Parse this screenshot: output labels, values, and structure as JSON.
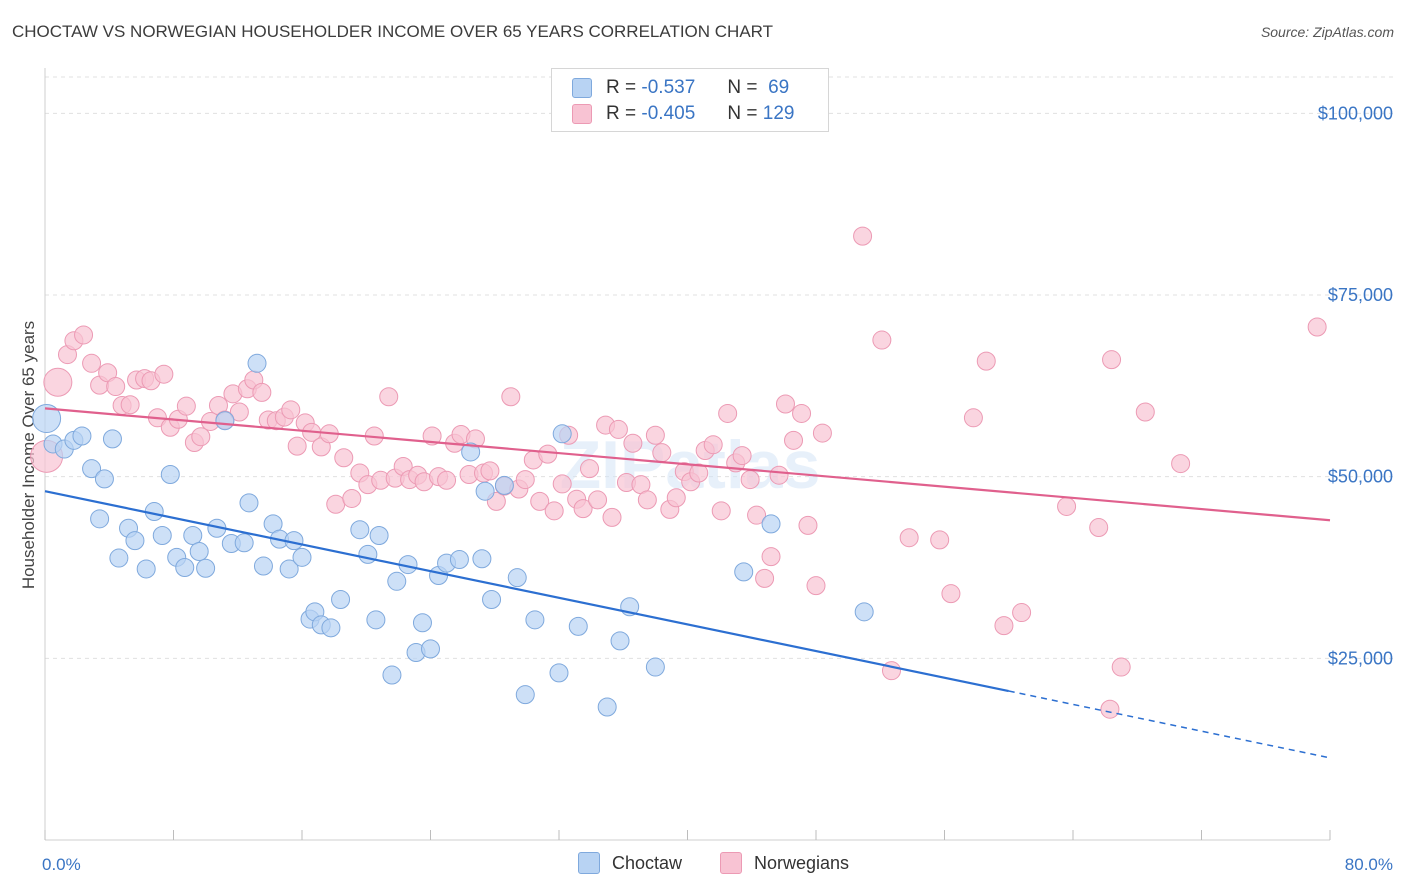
{
  "title": "CHOCTAW VS NORWEGIAN HOUSEHOLDER INCOME OVER 65 YEARS CORRELATION CHART",
  "source": "Source: ZipAtlas.com",
  "watermark": "ZIPatlas",
  "legend": {
    "r_label": "R =",
    "n_label": "N =",
    "rows": [
      {
        "name": "Choctaw",
        "r": "-0.537",
        "n": "69"
      },
      {
        "name": "Norwegians",
        "r": "-0.405",
        "n": "129"
      }
    ]
  },
  "colors": {
    "choctaw_fill": "#b8d3f3",
    "choctaw_stroke": "#7fa9dd",
    "choctaw_line": "#2c6fd1",
    "norwegian_fill": "#f8c3d3",
    "norwegian_stroke": "#ec9ab4",
    "norwegian_line": "#e0608d",
    "axis_text": "#3a75c4",
    "grid": "#e0e0e0"
  },
  "chart_data": {
    "type": "scatter",
    "title": "CHOCTAW VS NORWEGIAN HOUSEHOLDER INCOME OVER 65 YEARS CORRELATION CHART",
    "xlabel": "",
    "ylabel": "Householder Income Over 65 years",
    "xlim": [
      0,
      80
    ],
    "ylim": [
      0,
      105000
    ],
    "x_tick_labels": [
      "0.0%",
      "80.0%"
    ],
    "y_ticks": [
      25000,
      50000,
      75000,
      100000
    ],
    "y_tick_labels": [
      "$25,000",
      "$50,000",
      "$75,000",
      "$100,000"
    ],
    "series": [
      {
        "name": "Choctaw",
        "trend": {
          "x0": 0,
          "y0": 48000,
          "x1": 60,
          "y1": 20500,
          "dash_x1": 80,
          "dash_y1": 11300
        },
        "points": [
          {
            "x": 0.1,
            "y": 58000,
            "s": 14
          },
          {
            "x": 0.5,
            "y": 54500
          },
          {
            "x": 1.2,
            "y": 53800
          },
          {
            "x": 1.8,
            "y": 55000
          },
          {
            "x": 2.3,
            "y": 55600
          },
          {
            "x": 2.9,
            "y": 51100
          },
          {
            "x": 3.4,
            "y": 44200
          },
          {
            "x": 3.7,
            "y": 49700
          },
          {
            "x": 4.2,
            "y": 55200
          },
          {
            "x": 4.6,
            "y": 38800
          },
          {
            "x": 5.2,
            "y": 42900
          },
          {
            "x": 5.6,
            "y": 41200
          },
          {
            "x": 6.3,
            "y": 37300
          },
          {
            "x": 6.8,
            "y": 45200
          },
          {
            "x": 7.3,
            "y": 41900
          },
          {
            "x": 7.8,
            "y": 50300
          },
          {
            "x": 8.2,
            "y": 38900
          },
          {
            "x": 8.7,
            "y": 37500
          },
          {
            "x": 9.2,
            "y": 41900
          },
          {
            "x": 9.6,
            "y": 39700
          },
          {
            "x": 10.0,
            "y": 37400
          },
          {
            "x": 10.7,
            "y": 42900
          },
          {
            "x": 11.2,
            "y": 57700
          },
          {
            "x": 11.6,
            "y": 40800
          },
          {
            "x": 12.4,
            "y": 40900
          },
          {
            "x": 12.7,
            "y": 46400
          },
          {
            "x": 13.2,
            "y": 65600
          },
          {
            "x": 13.6,
            "y": 37700
          },
          {
            "x": 14.2,
            "y": 43500
          },
          {
            "x": 14.6,
            "y": 41400
          },
          {
            "x": 15.2,
            "y": 37300
          },
          {
            "x": 15.5,
            "y": 41200
          },
          {
            "x": 16.0,
            "y": 38900
          },
          {
            "x": 16.5,
            "y": 30400
          },
          {
            "x": 16.8,
            "y": 31400
          },
          {
            "x": 17.2,
            "y": 29600
          },
          {
            "x": 17.8,
            "y": 29200
          },
          {
            "x": 18.4,
            "y": 33100
          },
          {
            "x": 19.6,
            "y": 42700
          },
          {
            "x": 20.1,
            "y": 39300
          },
          {
            "x": 20.6,
            "y": 30300
          },
          {
            "x": 20.8,
            "y": 41900
          },
          {
            "x": 21.6,
            "y": 22700
          },
          {
            "x": 21.9,
            "y": 35600
          },
          {
            "x": 22.6,
            "y": 37900
          },
          {
            "x": 23.1,
            "y": 25800
          },
          {
            "x": 23.5,
            "y": 29900
          },
          {
            "x": 24.0,
            "y": 26300
          },
          {
            "x": 24.5,
            "y": 36400
          },
          {
            "x": 25.0,
            "y": 38100
          },
          {
            "x": 25.8,
            "y": 38600
          },
          {
            "x": 26.5,
            "y": 53400
          },
          {
            "x": 27.2,
            "y": 38700
          },
          {
            "x": 27.4,
            "y": 48000
          },
          {
            "x": 27.8,
            "y": 33100
          },
          {
            "x": 28.6,
            "y": 48800
          },
          {
            "x": 29.4,
            "y": 36100
          },
          {
            "x": 29.9,
            "y": 20000
          },
          {
            "x": 30.5,
            "y": 30300
          },
          {
            "x": 32.0,
            "y": 23000
          },
          {
            "x": 32.2,
            "y": 55900
          },
          {
            "x": 33.2,
            "y": 29400
          },
          {
            "x": 35.0,
            "y": 18300
          },
          {
            "x": 35.8,
            "y": 27400
          },
          {
            "x": 36.4,
            "y": 32100
          },
          {
            "x": 38.0,
            "y": 23800
          },
          {
            "x": 43.5,
            "y": 36900
          },
          {
            "x": 45.2,
            "y": 43500
          },
          {
            "x": 51.0,
            "y": 31400
          }
        ]
      },
      {
        "name": "Norwegians",
        "trend": {
          "x0": 0,
          "y0": 59400,
          "x1": 80,
          "y1": 44000
        },
        "points": [
          {
            "x": 0.1,
            "y": 52800,
            "s": 16
          },
          {
            "x": 0.8,
            "y": 63000,
            "s": 14
          },
          {
            "x": 1.4,
            "y": 66800
          },
          {
            "x": 1.8,
            "y": 68700
          },
          {
            "x": 2.4,
            "y": 69500
          },
          {
            "x": 2.9,
            "y": 65600
          },
          {
            "x": 3.4,
            "y": 62600
          },
          {
            "x": 3.9,
            "y": 64300
          },
          {
            "x": 4.4,
            "y": 62400
          },
          {
            "x": 4.8,
            "y": 59800
          },
          {
            "x": 5.3,
            "y": 59900
          },
          {
            "x": 5.7,
            "y": 63300
          },
          {
            "x": 6.2,
            "y": 63500
          },
          {
            "x": 6.6,
            "y": 63200
          },
          {
            "x": 7.0,
            "y": 58100
          },
          {
            "x": 7.4,
            "y": 64100
          },
          {
            "x": 7.8,
            "y": 56800
          },
          {
            "x": 8.3,
            "y": 57900
          },
          {
            "x": 8.8,
            "y": 59700
          },
          {
            "x": 9.3,
            "y": 54700
          },
          {
            "x": 9.7,
            "y": 55500
          },
          {
            "x": 10.3,
            "y": 57600
          },
          {
            "x": 10.8,
            "y": 59800
          },
          {
            "x": 11.2,
            "y": 57800
          },
          {
            "x": 11.7,
            "y": 61400
          },
          {
            "x": 12.1,
            "y": 58900
          },
          {
            "x": 12.6,
            "y": 62100
          },
          {
            "x": 13.0,
            "y": 63300
          },
          {
            "x": 13.5,
            "y": 61600
          },
          {
            "x": 13.9,
            "y": 57800
          },
          {
            "x": 14.4,
            "y": 57700
          },
          {
            "x": 14.9,
            "y": 58200
          },
          {
            "x": 15.3,
            "y": 59200
          },
          {
            "x": 15.7,
            "y": 54200
          },
          {
            "x": 16.2,
            "y": 57400
          },
          {
            "x": 16.6,
            "y": 56100
          },
          {
            "x": 17.2,
            "y": 54100
          },
          {
            "x": 17.7,
            "y": 55900
          },
          {
            "x": 18.1,
            "y": 46200
          },
          {
            "x": 18.6,
            "y": 52600
          },
          {
            "x": 19.1,
            "y": 47000
          },
          {
            "x": 19.6,
            "y": 50500
          },
          {
            "x": 20.1,
            "y": 48900
          },
          {
            "x": 20.5,
            "y": 55600
          },
          {
            "x": 20.9,
            "y": 49500
          },
          {
            "x": 21.4,
            "y": 61000
          },
          {
            "x": 21.8,
            "y": 49800
          },
          {
            "x": 22.3,
            "y": 51400
          },
          {
            "x": 22.7,
            "y": 49600
          },
          {
            "x": 23.2,
            "y": 50200
          },
          {
            "x": 23.6,
            "y": 49300
          },
          {
            "x": 24.1,
            "y": 55600
          },
          {
            "x": 24.5,
            "y": 50000
          },
          {
            "x": 25.0,
            "y": 49500
          },
          {
            "x": 25.5,
            "y": 54600
          },
          {
            "x": 25.9,
            "y": 55800
          },
          {
            "x": 26.4,
            "y": 50300
          },
          {
            "x": 26.8,
            "y": 55200
          },
          {
            "x": 27.3,
            "y": 50500
          },
          {
            "x": 27.7,
            "y": 50800
          },
          {
            "x": 28.1,
            "y": 46600
          },
          {
            "x": 28.6,
            "y": 48700
          },
          {
            "x": 29.0,
            "y": 61000
          },
          {
            "x": 29.5,
            "y": 48300
          },
          {
            "x": 29.9,
            "y": 49600
          },
          {
            "x": 30.4,
            "y": 52300
          },
          {
            "x": 30.8,
            "y": 46600
          },
          {
            "x": 31.3,
            "y": 53100
          },
          {
            "x": 31.7,
            "y": 45300
          },
          {
            "x": 32.2,
            "y": 49000
          },
          {
            "x": 32.6,
            "y": 55700
          },
          {
            "x": 33.1,
            "y": 46900
          },
          {
            "x": 33.5,
            "y": 45600
          },
          {
            "x": 33.9,
            "y": 51100
          },
          {
            "x": 34.4,
            "y": 46800
          },
          {
            "x": 34.9,
            "y": 57100
          },
          {
            "x": 35.3,
            "y": 44400
          },
          {
            "x": 35.7,
            "y": 56500
          },
          {
            "x": 36.2,
            "y": 49200
          },
          {
            "x": 36.6,
            "y": 54600
          },
          {
            "x": 37.1,
            "y": 48900
          },
          {
            "x": 37.5,
            "y": 46800
          },
          {
            "x": 38.0,
            "y": 55700
          },
          {
            "x": 38.4,
            "y": 53300
          },
          {
            "x": 38.9,
            "y": 45500
          },
          {
            "x": 39.3,
            "y": 47100
          },
          {
            "x": 39.8,
            "y": 50700
          },
          {
            "x": 40.2,
            "y": 49300
          },
          {
            "x": 40.7,
            "y": 50500
          },
          {
            "x": 41.1,
            "y": 53600
          },
          {
            "x": 41.6,
            "y": 54400
          },
          {
            "x": 42.1,
            "y": 45300
          },
          {
            "x": 42.5,
            "y": 58700
          },
          {
            "x": 43.0,
            "y": 51900
          },
          {
            "x": 43.4,
            "y": 52900
          },
          {
            "x": 43.9,
            "y": 49600
          },
          {
            "x": 44.3,
            "y": 44700
          },
          {
            "x": 44.8,
            "y": 36000
          },
          {
            "x": 45.2,
            "y": 39000
          },
          {
            "x": 45.7,
            "y": 50200
          },
          {
            "x": 46.1,
            "y": 60000
          },
          {
            "x": 46.6,
            "y": 55000
          },
          {
            "x": 47.1,
            "y": 58700
          },
          {
            "x": 47.5,
            "y": 43300
          },
          {
            "x": 48.0,
            "y": 35000
          },
          {
            "x": 48.4,
            "y": 56000
          },
          {
            "x": 50.9,
            "y": 83100
          },
          {
            "x": 52.1,
            "y": 68800
          },
          {
            "x": 52.7,
            "y": 23300
          },
          {
            "x": 53.8,
            "y": 41600
          },
          {
            "x": 55.7,
            "y": 41300
          },
          {
            "x": 56.4,
            "y": 33900
          },
          {
            "x": 57.8,
            "y": 58100
          },
          {
            "x": 58.6,
            "y": 65900
          },
          {
            "x": 59.7,
            "y": 29500
          },
          {
            "x": 60.8,
            "y": 31300
          },
          {
            "x": 63.6,
            "y": 45900
          },
          {
            "x": 65.6,
            "y": 43000
          },
          {
            "x": 66.4,
            "y": 66100
          },
          {
            "x": 67.0,
            "y": 23800
          },
          {
            "x": 68.5,
            "y": 58900
          },
          {
            "x": 70.7,
            "y": 51800
          },
          {
            "x": 66.3,
            "y": 18000
          },
          {
            "x": 79.2,
            "y": 70600
          }
        ]
      }
    ]
  }
}
